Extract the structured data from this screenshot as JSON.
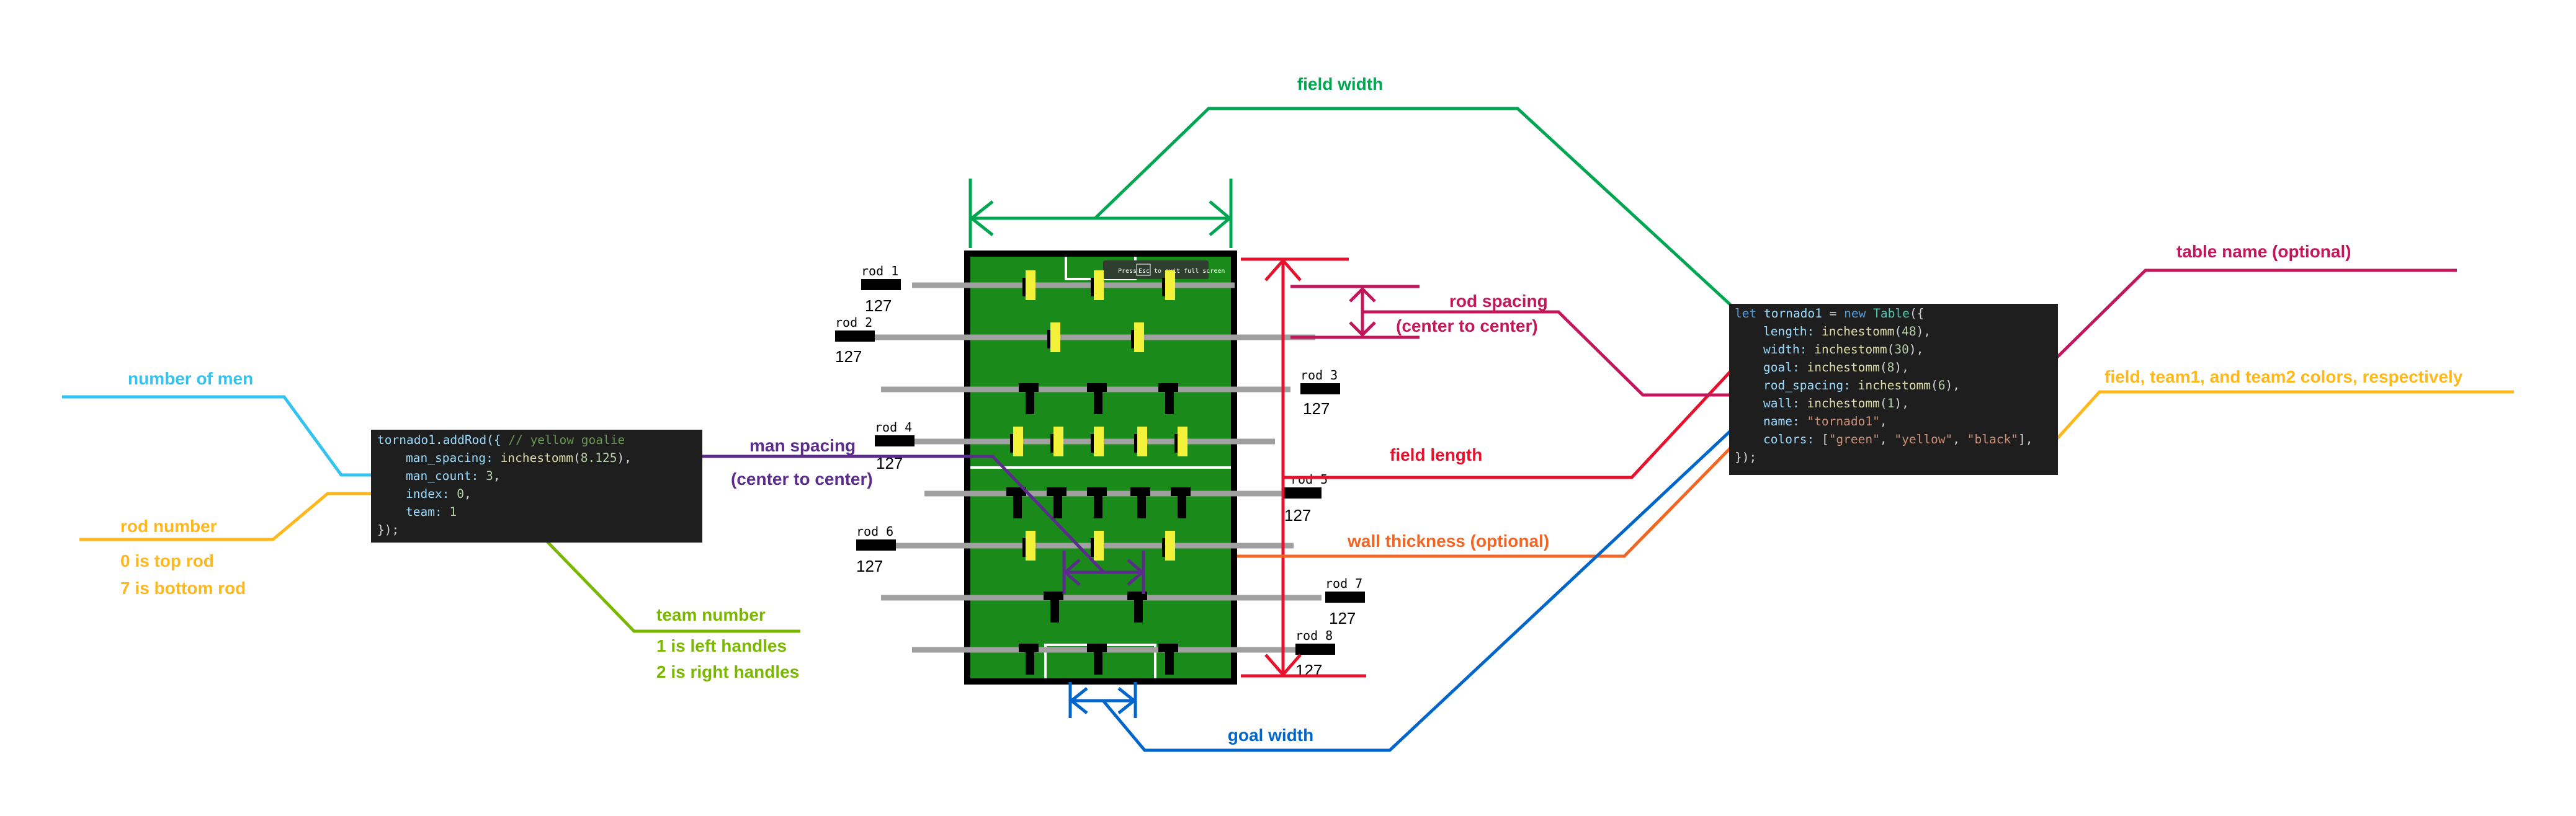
{
  "labels": {
    "field_width": "field width",
    "rod_spacing_1": "rod spacing",
    "rod_spacing_2": "(center to center)",
    "field_length": "field length",
    "wall_thickness": "wall thickness (optional)",
    "goal_width": "goal width",
    "man_spacing_1": "man spacing",
    "man_spacing_2": "(center to center)",
    "number_of_men": "number of men",
    "rod_number": "rod number",
    "rod_number_top": "0 is top rod",
    "rod_number_bottom": "7 is bottom rod",
    "team_number": "team number",
    "team_left": "1 is left handles",
    "team_right": "2 is right handles",
    "table_name": "table name (optional)",
    "colors_note": "field, team1, and team2 colors, respectively"
  },
  "rods": [
    {
      "name": "rod 1",
      "value": "127"
    },
    {
      "name": "rod 2",
      "value": "127"
    },
    {
      "name": "rod 3",
      "value": "127"
    },
    {
      "name": "rod 4",
      "value": "127"
    },
    {
      "name": "rod 5",
      "value": "127"
    },
    {
      "name": "rod 6",
      "value": "127"
    },
    {
      "name": "rod 7",
      "value": "127"
    },
    {
      "name": "rod 8",
      "value": "127"
    }
  ],
  "fullscreen_hint": {
    "pre": "Press",
    "key": "Esc",
    "post": "to exit full screen"
  },
  "code_addrod": {
    "l1": "tornado1.addRod({",
    "l1_comment": "// yellow goalie",
    "l2_key": "man_spacing:",
    "l2_fn": "inchestomm",
    "l2_num": "8.125",
    "l3_key": "man_count:",
    "l3_num": "3",
    "l4_key": "index:",
    "l4_num": "0",
    "l5_key": "team:",
    "l5_num": "1",
    "l6": "});"
  },
  "code_table": {
    "l1_kw": "let",
    "l1_var": "tornado1",
    "l1_new": "new",
    "l1_cls": "Table",
    "length_key": "length:",
    "length_num": "48",
    "width_key": "width:",
    "width_num": "30",
    "goal_key": "goal:",
    "goal_num": "8",
    "rodsp_key": "rod_spacing:",
    "rodsp_num": "6",
    "wall_key": "wall:",
    "wall_num": "1",
    "name_key": "name:",
    "name_val": "\"tornado1\"",
    "colors_key": "colors:",
    "colors_vals": [
      "\"green\"",
      "\"yellow\"",
      "\"black\""
    ],
    "fn": "inchestomm",
    "close": "});"
  },
  "colors": {
    "field": "#1a8a1a",
    "team1": "#f2f23a",
    "team2": "#000000",
    "rod": "#a0a0a0",
    "green_ann": "#00a651",
    "red_ann": "#e8112d",
    "magenta_ann": "#c2185b",
    "orange_ann": "#f26522",
    "blue_ann": "#0066cc",
    "purple_ann": "#5b2c8c",
    "cyan_ann": "#33c3f0",
    "gold_ann": "#ffb81c",
    "lime_ann": "#7ab800"
  }
}
